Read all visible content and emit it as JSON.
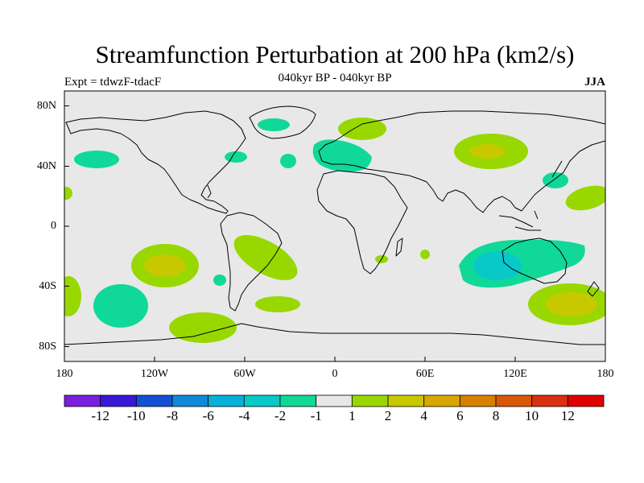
{
  "title": "Streamfunction Perturbation at 200 hPa (km2/s)",
  "subtitle": "040kyr BP - 040kyr BP",
  "left_label": "Expt = tdwzF-tdacF",
  "right_label": "JJA",
  "lat_ticks": [
    "80N",
    "40N",
    "0",
    "40S",
    "80S"
  ],
  "lon_ticks": [
    "180",
    "120W",
    "60W",
    "0",
    "60E",
    "120E",
    "180"
  ],
  "colorbar": {
    "colors": [
      "#7a1fe0",
      "#3a18d8",
      "#1550d4",
      "#0f88d8",
      "#06b0d8",
      "#08c8c8",
      "#10d898",
      "#e8e8e8",
      "#98d800",
      "#c8c800",
      "#d8a800",
      "#d88000",
      "#d85808",
      "#d83010",
      "#e00000"
    ],
    "labels": [
      "-12",
      "-10",
      "-8",
      "-6",
      "-4",
      "-2",
      "-1",
      "1",
      "2",
      "4",
      "6",
      "8",
      "10",
      "12"
    ]
  },
  "map": {
    "background": "#e8e8e8",
    "coast_color": "#000000"
  }
}
